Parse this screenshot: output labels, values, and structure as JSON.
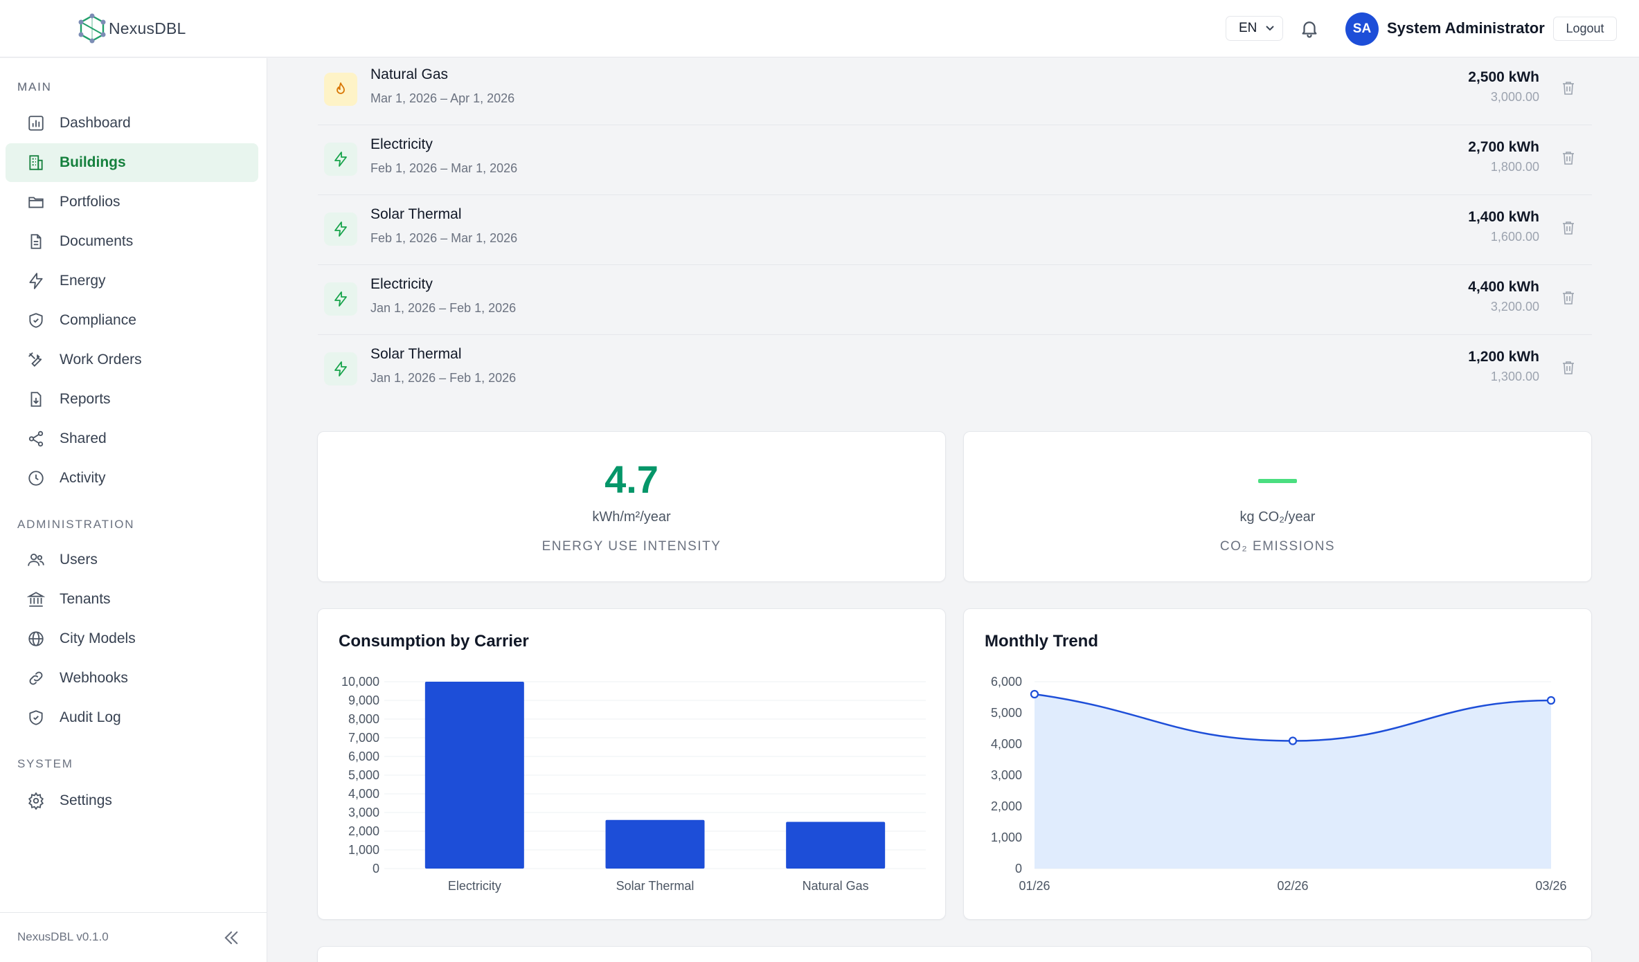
{
  "header": {
    "logo_text": "NexusDBL",
    "language": "EN",
    "user_initials": "SA",
    "user_name": "System Administrator",
    "logout_label": "Logout"
  },
  "sidebar": {
    "sections": [
      {
        "label": "MAIN",
        "items": [
          {
            "label": "Dashboard",
            "icon": "dashboard-icon"
          },
          {
            "label": "Buildings",
            "icon": "building-icon",
            "active": true
          },
          {
            "label": "Portfolios",
            "icon": "folder-icon"
          },
          {
            "label": "Documents",
            "icon": "document-icon"
          },
          {
            "label": "Energy",
            "icon": "lightning-icon"
          },
          {
            "label": "Compliance",
            "icon": "shield-check-icon"
          },
          {
            "label": "Work Orders",
            "icon": "tools-icon"
          },
          {
            "label": "Reports",
            "icon": "report-download-icon"
          },
          {
            "label": "Shared",
            "icon": "share-icon"
          },
          {
            "label": "Activity",
            "icon": "clock-icon"
          }
        ]
      },
      {
        "label": "ADMINISTRATION",
        "items": [
          {
            "label": "Users",
            "icon": "users-icon"
          },
          {
            "label": "Tenants",
            "icon": "bank-icon"
          },
          {
            "label": "City Models",
            "icon": "globe-icon"
          },
          {
            "label": "Webhooks",
            "icon": "link-icon"
          },
          {
            "label": "Audit Log",
            "icon": "shield-check-icon"
          }
        ]
      },
      {
        "label": "SYSTEM",
        "items": [
          {
            "label": "Settings",
            "icon": "gear-icon"
          }
        ]
      }
    ],
    "version": "NexusDBL v0.1.0"
  },
  "readings": [
    {
      "carrier": "Natural Gas",
      "period": "Mar 1, 2026 – Apr 1, 2026",
      "kwh": "2,500 kWh",
      "cost": "3,000.00",
      "icon": "flame-icon"
    },
    {
      "carrier": "Electricity",
      "period": "Feb 1, 2026 – Mar 1, 2026",
      "kwh": "2,700 kWh",
      "cost": "1,800.00",
      "icon": "lightning-icon"
    },
    {
      "carrier": "Solar Thermal",
      "period": "Feb 1, 2026 – Mar 1, 2026",
      "kwh": "1,400 kWh",
      "cost": "1,600.00",
      "icon": "lightning-icon"
    },
    {
      "carrier": "Electricity",
      "period": "Jan 1, 2026 – Feb 1, 2026",
      "kwh": "4,400 kWh",
      "cost": "3,200.00",
      "icon": "lightning-icon"
    },
    {
      "carrier": "Solar Thermal",
      "period": "Jan 1, 2026 – Feb 1, 2026",
      "kwh": "1,200 kWh",
      "cost": "1,300.00",
      "icon": "lightning-icon"
    }
  ],
  "kpis": {
    "eui": {
      "value": "4.7",
      "unit": "kWh/m²/year",
      "label": "ENERGY USE INTENSITY"
    },
    "co2": {
      "value": "—",
      "unit": "kg CO₂/year",
      "label": "CO₂ EMISSIONS"
    }
  },
  "colors": {
    "accent": "#059669",
    "bar": "#1d4ed8",
    "line": "#1d4ed8",
    "area": "#e0ecfd",
    "active_bg": "#e8f5ee"
  },
  "chart_data": [
    {
      "type": "bar",
      "title": "Consumption by Carrier",
      "categories": [
        "Electricity",
        "Solar Thermal",
        "Natural Gas"
      ],
      "values": [
        10000,
        2600,
        2500
      ],
      "ylim": [
        0,
        10000
      ],
      "yticks": [
        0,
        1000,
        2000,
        3000,
        4000,
        5000,
        6000,
        7000,
        8000,
        9000,
        10000
      ],
      "grid": true
    },
    {
      "type": "area",
      "title": "Monthly Trend",
      "x": [
        "01/26",
        "02/26",
        "03/26"
      ],
      "values": [
        5600,
        4100,
        5400
      ],
      "ylim": [
        0,
        6000
      ],
      "yticks": [
        0,
        1000,
        2000,
        3000,
        4000,
        5000,
        6000
      ],
      "grid": true
    }
  ]
}
